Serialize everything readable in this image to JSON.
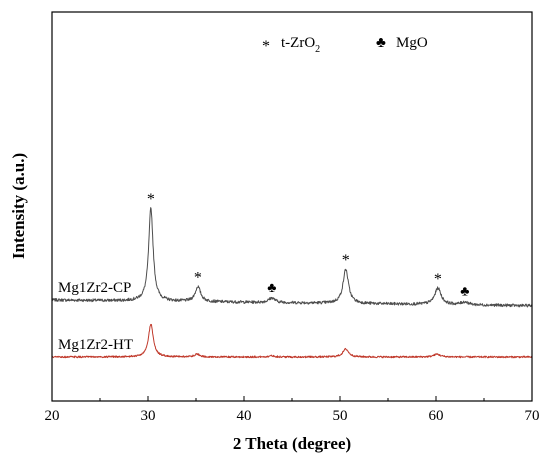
{
  "chart_data": {
    "type": "line",
    "xlabel": "2 Theta (degree)",
    "ylabel": "Intensity (a.u.)",
    "xlim": [
      20,
      70
    ],
    "x_ticks": [
      "20",
      "30",
      "40",
      "50",
      "60",
      "70"
    ],
    "y_ticks_shown": false,
    "grid": false,
    "legend": {
      "position": "top-center",
      "items": [
        {
          "symbol": "*",
          "text": "t-ZrO",
          "subscript": "2",
          "color": "#000000"
        },
        {
          "symbol": "♣",
          "text": "MgO",
          "subscript": "",
          "color": "#000000"
        }
      ]
    },
    "series": [
      {
        "name": "Mg1Zr2-CP",
        "color": "#4d4d4d",
        "baseline": 1.0,
        "peaks": [
          {
            "x": 30.3,
            "height": 1.63,
            "width": 0.28
          },
          {
            "x": 35.2,
            "height": 0.26,
            "width": 0.34
          },
          {
            "x": 42.9,
            "height": 0.08,
            "width": 0.4
          },
          {
            "x": 50.6,
            "height": 0.6,
            "width": 0.34
          },
          {
            "x": 60.2,
            "height": 0.29,
            "width": 0.4
          },
          {
            "x": 63.0,
            "height": 0.05,
            "width": 0.45
          }
        ],
        "noise": 0.025,
        "slope": -0.002
      },
      {
        "name": "Mg1Zr2-HT",
        "color": "#c0392b",
        "baseline": 0.0,
        "peaks": [
          {
            "x": 30.3,
            "height": 0.58,
            "width": 0.3
          },
          {
            "x": 35.1,
            "height": 0.05,
            "width": 0.35
          },
          {
            "x": 42.9,
            "height": 0.02,
            "width": 0.4
          },
          {
            "x": 50.6,
            "height": 0.14,
            "width": 0.36
          },
          {
            "x": 60.1,
            "height": 0.05,
            "width": 0.4
          }
        ],
        "noise": 0.015,
        "slope": 0.0
      }
    ],
    "annotations": [
      {
        "symbol": "*",
        "x": 30.3,
        "series": "Mg1Zr2-CP"
      },
      {
        "symbol": "*",
        "x": 35.2,
        "series": "Mg1Zr2-CP"
      },
      {
        "symbol": "♣",
        "x": 42.9,
        "series": "Mg1Zr2-CP"
      },
      {
        "symbol": "*",
        "x": 50.6,
        "series": "Mg1Zr2-CP"
      },
      {
        "symbol": "*",
        "x": 60.2,
        "series": "Mg1Zr2-CP"
      },
      {
        "symbol": "♣",
        "x": 63.0,
        "series": "Mg1Zr2-CP"
      }
    ]
  }
}
